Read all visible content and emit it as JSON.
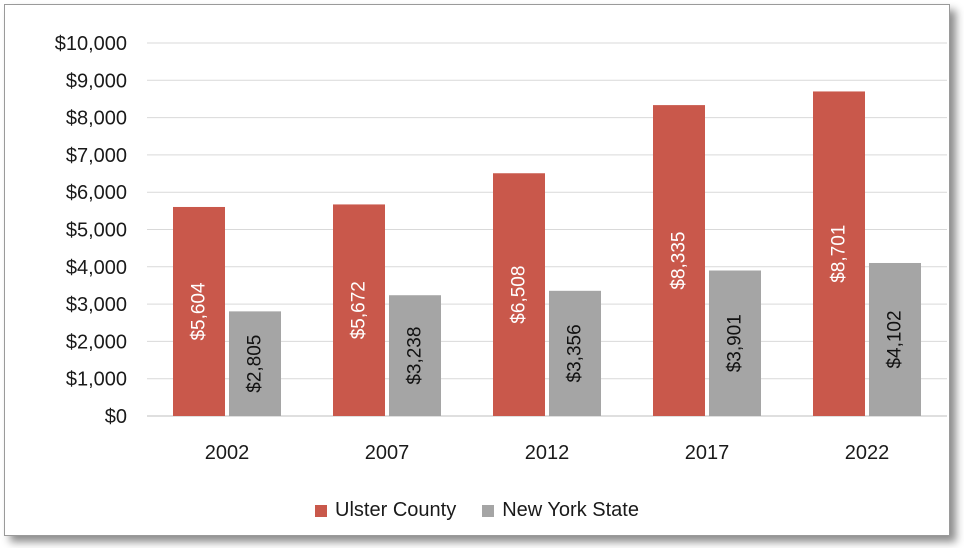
{
  "chart_data": {
    "type": "bar",
    "title": "",
    "xlabel": "",
    "ylabel": "",
    "categories": [
      "2002",
      "2007",
      "2012",
      "2017",
      "2022"
    ],
    "ylim": [
      0,
      10000
    ],
    "yticks": [
      0,
      1000,
      2000,
      3000,
      4000,
      5000,
      6000,
      7000,
      8000,
      9000,
      10000
    ],
    "ytick_labels": [
      "$0",
      "$1,000",
      "$2,000",
      "$3,000",
      "$4,000",
      "$5,000",
      "$6,000",
      "$7,000",
      "$8,000",
      "$9,000",
      "$10,000"
    ],
    "grid": true,
    "legend_position": "bottom",
    "series": [
      {
        "name": "Ulster County",
        "color": "#c9584b",
        "label_color": "#ffffff",
        "values": [
          5604,
          5672,
          6508,
          8335,
          8701
        ],
        "labels": [
          "$5,604",
          "$5,672",
          "$6,508",
          "$8,335",
          "$8,701"
        ]
      },
      {
        "name": "New York State",
        "color": "#a5a5a5",
        "label_color": "#111111",
        "values": [
          2805,
          3238,
          3356,
          3901,
          4102
        ],
        "labels": [
          "$2,805",
          "$3,238",
          "$3,356",
          "$3,901",
          "$4,102"
        ]
      }
    ]
  }
}
